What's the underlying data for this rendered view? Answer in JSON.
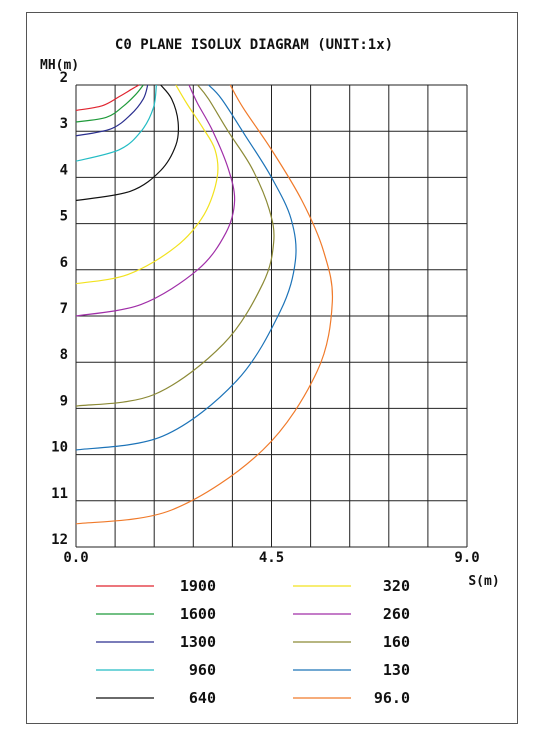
{
  "chart_data": {
    "type": "line",
    "title": "C0 PLANE ISOLUX DIAGRAM (UNIT:1x)",
    "xlabel": "S(m)",
    "ylabel": "MH(m)",
    "xlim": [
      0,
      9
    ],
    "ylim": [
      2,
      12
    ],
    "y_inverted": true,
    "x_tick_labels": [
      "0.0",
      "4.5",
      "9.0"
    ],
    "x_tick_values": [
      0,
      4.5,
      9
    ],
    "y_tick_labels": [
      "2",
      "3",
      "4",
      "5",
      "6",
      "7",
      "8",
      "9",
      "10",
      "11",
      "12"
    ],
    "y_tick_values": [
      2,
      3,
      4,
      5,
      6,
      7,
      8,
      9,
      10,
      11,
      12
    ],
    "grid": true,
    "legend_position": "bottom",
    "series": [
      {
        "name": "1900",
        "color": "#e0242f",
        "x": [
          0.0,
          0.6,
          1.0,
          1.3,
          1.45
        ],
        "y": [
          2.55,
          2.45,
          2.25,
          2.08,
          2.0
        ]
      },
      {
        "name": "1600",
        "color": "#1f9a3a",
        "x": [
          0.0,
          0.7,
          1.1,
          1.38,
          1.55
        ],
        "y": [
          2.8,
          2.7,
          2.45,
          2.2,
          2.0
        ]
      },
      {
        "name": "1300",
        "color": "#2b2f8f",
        "x": [
          0.0,
          0.8,
          1.25,
          1.55,
          1.65
        ],
        "y": [
          3.1,
          2.95,
          2.65,
          2.3,
          2.0
        ]
      },
      {
        "name": "960",
        "color": "#23bcc4",
        "x": [
          0.0,
          1.0,
          1.5,
          1.78,
          1.85
        ],
        "y": [
          3.65,
          3.4,
          3.0,
          2.5,
          2.0
        ]
      },
      {
        "name": "640",
        "color": "#111111",
        "x": [
          0.0,
          1.25,
          1.95,
          2.3,
          2.35,
          2.2,
          1.95
        ],
        "y": [
          4.5,
          4.3,
          3.85,
          3.3,
          2.8,
          2.3,
          2.0
        ]
      },
      {
        "name": "320",
        "color": "#f2e21e",
        "x": [
          0.0,
          1.2,
          2.3,
          2.95,
          3.25,
          3.2,
          2.9,
          2.55,
          2.3
        ],
        "y": [
          6.3,
          6.1,
          5.5,
          4.8,
          4.0,
          3.4,
          2.9,
          2.4,
          2.0
        ]
      },
      {
        "name": "260",
        "color": "#a02fa8",
        "x": [
          0.0,
          1.5,
          2.8,
          3.45,
          3.65,
          3.5,
          3.15,
          2.8,
          2.6
        ],
        "y": [
          7.0,
          6.75,
          6.0,
          5.2,
          4.5,
          3.8,
          3.0,
          2.4,
          2.0
        ]
      },
      {
        "name": "160",
        "color": "#8c8a36",
        "x": [
          0.0,
          1.8,
          3.4,
          4.3,
          4.55,
          4.45,
          4.05,
          3.5,
          3.05,
          2.8
        ],
        "y": [
          8.95,
          8.7,
          7.6,
          6.3,
          5.4,
          4.7,
          3.8,
          3.0,
          2.3,
          2.0
        ]
      },
      {
        "name": "130",
        "color": "#1c73b8",
        "x": [
          0.0,
          2.0,
          3.7,
          4.7,
          5.05,
          4.95,
          4.5,
          3.9,
          3.35,
          3.05
        ],
        "y": [
          9.9,
          9.6,
          8.4,
          6.9,
          5.8,
          4.9,
          4.0,
          3.1,
          2.3,
          2.0
        ]
      },
      {
        "name": "96.0",
        "color": "#f07a2a",
        "x": [
          0.0,
          2.2,
          4.3,
          5.55,
          5.9,
          5.7,
          5.2,
          4.5,
          3.85,
          3.55
        ],
        "y": [
          11.5,
          11.2,
          9.9,
          8.2,
          6.7,
          5.6,
          4.5,
          3.4,
          2.5,
          2.0
        ]
      }
    ]
  }
}
